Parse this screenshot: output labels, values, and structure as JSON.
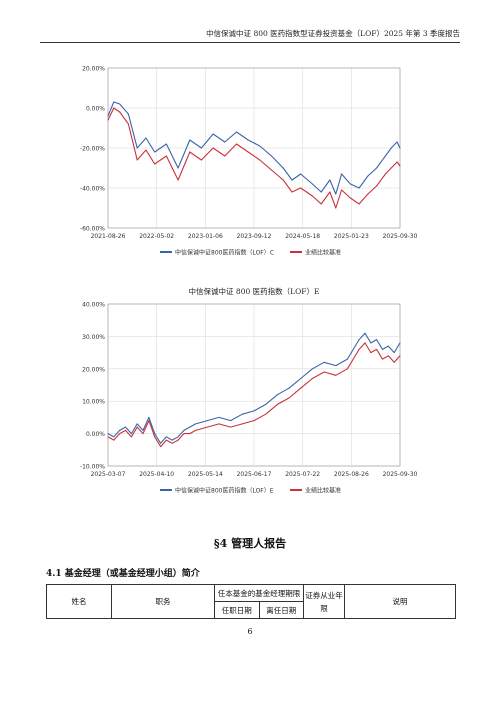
{
  "header": {
    "text": "中信保诚中证 800 医药指数型证券投资基金（LOF）2025 年第 3 季度报告"
  },
  "chart_data": [
    {
      "type": "line",
      "title": "",
      "x_ticks": [
        "2021-08-26",
        "2022-05-02",
        "2023-01-06",
        "2023-09-12",
        "2024-05-18",
        "2025-01-23",
        "2025-09-30"
      ],
      "y_ticks": [
        "20.00%",
        "0.00%",
        "-20.00%",
        "-40.00%",
        "-60.00%"
      ],
      "ylim": [
        -60,
        20
      ],
      "legend_position": "bottom",
      "series": [
        {
          "name": "中信保诚中证800医药指数（LOF）C",
          "color": "#3b64a8",
          "x": [
            0,
            0.02,
            0.04,
            0.07,
            0.1,
            0.13,
            0.16,
            0.2,
            0.24,
            0.28,
            0.32,
            0.36,
            0.4,
            0.44,
            0.48,
            0.52,
            0.56,
            0.6,
            0.63,
            0.66,
            0.7,
            0.73,
            0.76,
            0.78,
            0.8,
            0.83,
            0.86,
            0.89,
            0.92,
            0.95,
            0.97,
            0.99,
            1.0
          ],
          "values": [
            -4,
            3,
            2,
            -3,
            -20,
            -15,
            -22,
            -18,
            -30,
            -16,
            -20,
            -13,
            -17,
            -12,
            -16,
            -19,
            -24,
            -30,
            -36,
            -33,
            -38,
            -42,
            -36,
            -43,
            -33,
            -38,
            -40,
            -34,
            -30,
            -24,
            -20,
            -17,
            -20
          ]
        },
        {
          "name": "业绩比较基准",
          "color": "#c8323c",
          "x": [
            0,
            0.02,
            0.04,
            0.07,
            0.1,
            0.13,
            0.16,
            0.2,
            0.24,
            0.28,
            0.32,
            0.36,
            0.4,
            0.44,
            0.48,
            0.52,
            0.56,
            0.6,
            0.63,
            0.66,
            0.7,
            0.73,
            0.76,
            0.78,
            0.8,
            0.83,
            0.86,
            0.89,
            0.92,
            0.95,
            0.97,
            0.99,
            1.0
          ],
          "values": [
            -6,
            0,
            -2,
            -8,
            -26,
            -21,
            -28,
            -24,
            -36,
            -22,
            -26,
            -20,
            -24,
            -18,
            -22,
            -26,
            -31,
            -36,
            -42,
            -40,
            -44,
            -48,
            -42,
            -50,
            -41,
            -45,
            -48,
            -43,
            -39,
            -33,
            -30,
            -27,
            -29
          ]
        }
      ]
    },
    {
      "type": "line",
      "title": "中信保诚中证 800 医药指数（LOF）E",
      "x_ticks": [
        "2025-03-07",
        "2025-04-10",
        "2025-05-14",
        "2025-06-17",
        "2025-07-22",
        "2025-08-26",
        "2025-09-30"
      ],
      "y_ticks": [
        "40.00%",
        "30.00%",
        "20.00%",
        "10.00%",
        "0.00%",
        "-10.00%"
      ],
      "ylim": [
        -10,
        40
      ],
      "legend_position": "bottom",
      "series": [
        {
          "name": "中信保诚中证800医药指数（LOF）E",
          "color": "#3b64a8",
          "x": [
            0,
            0.02,
            0.04,
            0.06,
            0.08,
            0.1,
            0.12,
            0.14,
            0.16,
            0.18,
            0.2,
            0.22,
            0.24,
            0.26,
            0.28,
            0.3,
            0.34,
            0.38,
            0.42,
            0.46,
            0.5,
            0.54,
            0.58,
            0.62,
            0.66,
            0.7,
            0.74,
            0.78,
            0.82,
            0.86,
            0.88,
            0.9,
            0.92,
            0.94,
            0.96,
            0.98,
            1.0
          ],
          "values": [
            0,
            -1,
            1,
            2,
            0,
            3,
            1,
            5,
            0,
            -3,
            -1,
            -2,
            -1,
            1,
            2,
            3,
            4,
            5,
            4,
            6,
            7,
            9,
            12,
            14,
            17,
            20,
            22,
            21,
            23,
            29,
            31,
            28,
            29,
            26,
            27,
            25,
            28
          ]
        },
        {
          "name": "业绩比较基准",
          "color": "#c8323c",
          "x": [
            0,
            0.02,
            0.04,
            0.06,
            0.08,
            0.1,
            0.12,
            0.14,
            0.16,
            0.18,
            0.2,
            0.22,
            0.24,
            0.26,
            0.28,
            0.3,
            0.34,
            0.38,
            0.42,
            0.46,
            0.5,
            0.54,
            0.58,
            0.62,
            0.66,
            0.7,
            0.74,
            0.78,
            0.82,
            0.86,
            0.88,
            0.9,
            0.92,
            0.94,
            0.96,
            0.98,
            1.0
          ],
          "values": [
            -1,
            -2,
            0,
            1,
            -1,
            2,
            0,
            4,
            -1,
            -4,
            -2,
            -3,
            -2,
            0,
            0,
            1,
            2,
            3,
            2,
            3,
            4,
            6,
            9,
            11,
            14,
            17,
            19,
            18,
            20,
            26,
            28,
            25,
            26,
            23,
            24,
            22,
            24
          ]
        }
      ]
    }
  ],
  "section": {
    "title": "§4  管理人报告"
  },
  "subsection": {
    "title": "4.1  基金经理（或基金经理小组）简介"
  },
  "table": {
    "col_name": "姓名",
    "col_role": "职务",
    "col_term": "任本基金的基金经理期限",
    "col_start": "任职日期",
    "col_end": "离任日期",
    "col_years": "证券从业年限",
    "col_note": "说明"
  },
  "page_number": "6"
}
